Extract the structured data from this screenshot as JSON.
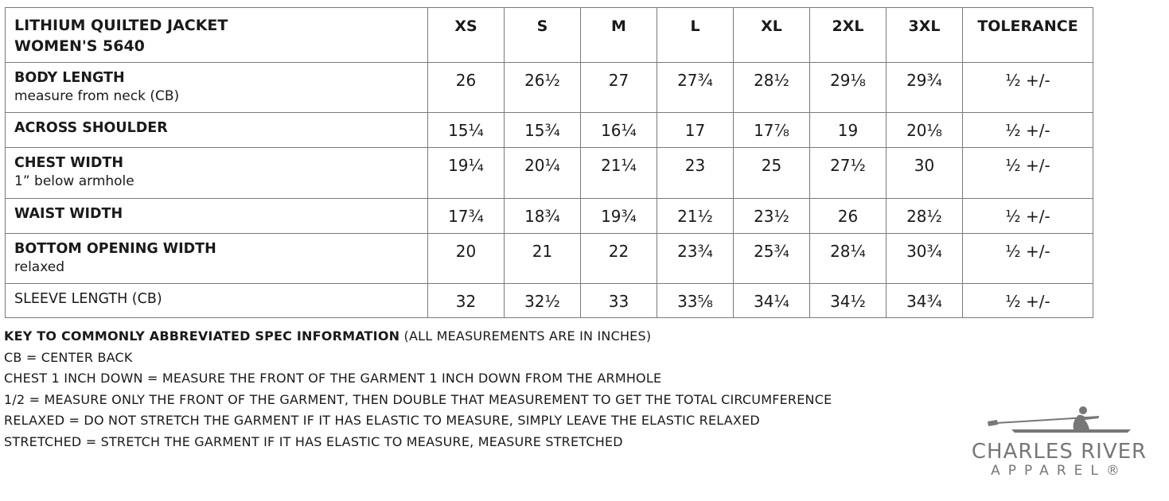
{
  "table": {
    "title_line1": "LITHIUM QUILTED JACKET",
    "title_line2": "WOMEN'S 5640",
    "sizes": [
      "XS",
      "S",
      "M",
      "L",
      "XL",
      "2XL",
      "3XL"
    ],
    "tolerance_header": "TOLERANCE",
    "rows": [
      {
        "label": "BODY LENGTH",
        "sub": "measure from neck (CB)",
        "values": [
          "26",
          "26½",
          "27",
          "27¾",
          "28½",
          "29⅛",
          "29¾"
        ],
        "tolerance": "½ +/-"
      },
      {
        "label": "ACROSS SHOULDER",
        "sub": "",
        "values": [
          "15¼",
          "15¾",
          "16¼",
          "17",
          "17⅞",
          "19",
          "20⅛"
        ],
        "tolerance": "½ +/-"
      },
      {
        "label": "CHEST WIDTH",
        "sub": "1” below armhole",
        "values": [
          "19¼",
          "20¼",
          "21¼",
          "23",
          "25",
          "27½",
          "30"
        ],
        "tolerance": "½ +/-"
      },
      {
        "label": "WAIST WIDTH",
        "sub": "",
        "values": [
          "17¾",
          "18¾",
          "19¾",
          "21½",
          "23½",
          "26",
          "28½"
        ],
        "tolerance": "½ +/-"
      },
      {
        "label": "BOTTOM OPENING WIDTH",
        "sub": "relaxed",
        "values": [
          "20",
          "21",
          "22",
          "23¾",
          "25¾",
          "28¼",
          "30¾"
        ],
        "tolerance": "½ +/-"
      },
      {
        "label": "SLEEVE LENGTH (CB)",
        "sub": "",
        "values": [
          "32",
          "32½",
          "33",
          "33⅝",
          "34¼",
          "34½",
          "34¾"
        ],
        "tolerance": "½ +/-"
      }
    ]
  },
  "notes": {
    "key_bold": "KEY TO COMMONLY ABBREVIATED SPEC INFORMATION",
    "key_rest": " (ALL MEASUREMENTS ARE IN INCHES)",
    "lines": [
      "CB = CENTER BACK",
      "CHEST 1 INCH DOWN = MEASURE THE FRONT OF THE GARMENT 1 INCH DOWN FROM THE ARMHOLE",
      "1/2 = MEASURE ONLY THE FRONT OF THE GARMENT, THEN DOUBLE THAT MEASUREMENT TO GET THE TOTAL CIRCUMFERENCE",
      "RELAXED = DO NOT STRETCH THE GARMENT IF IT HAS ELASTIC TO MEASURE, SIMPLY LEAVE THE ELASTIC RELAXED",
      "STRETCHED = STRETCH THE GARMENT IF IT HAS ELASTIC TO MEASURE, MEASURE STRETCHED"
    ]
  },
  "logo": {
    "line1": "CHARLES RIVER",
    "line2": "APPAREL®",
    "color": "#777777"
  }
}
